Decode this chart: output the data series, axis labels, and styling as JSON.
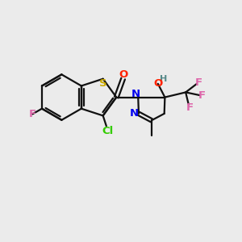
{
  "bg_color": "#ebebeb",
  "atom_colors": {
    "Cl": "#33cc00",
    "F": "#dd66aa",
    "O": "#ff2200",
    "N": "#0000ee",
    "S": "#ccaa00",
    "H": "#558888",
    "C": "#111111"
  },
  "bond_color": "#111111",
  "lw": 1.6,
  "fs": 9.5
}
